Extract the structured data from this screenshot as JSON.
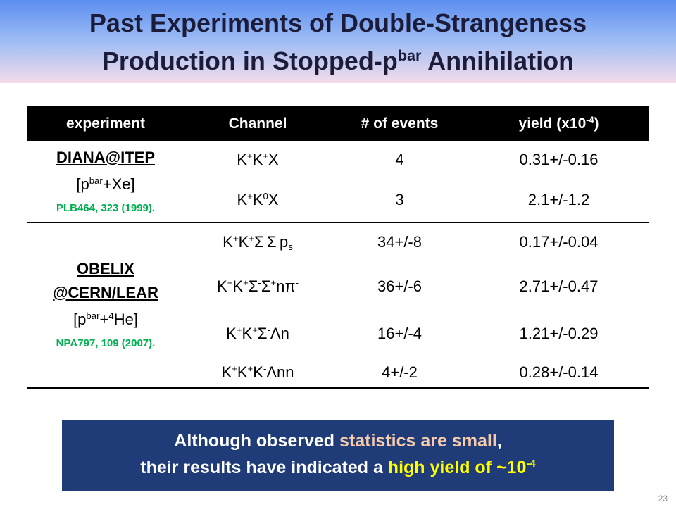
{
  "header": {
    "title_line1": [
      {
        "t": "Past Experiments of Double-Strangeness"
      }
    ],
    "title_line2": [
      {
        "t": "Production in Stopped-p"
      },
      {
        "t": "bar",
        "style": "sup"
      },
      {
        "t": " Annihilation"
      }
    ]
  },
  "table": {
    "columns": [
      [
        {
          "t": "experiment"
        }
      ],
      [
        {
          "t": "Channel"
        }
      ],
      [
        {
          "t": "# of events"
        }
      ],
      [
        {
          "t": "yield (x10"
        },
        {
          "t": "-4",
          "style": "sup"
        },
        {
          "t": ")"
        }
      ]
    ],
    "groups": [
      {
        "name": [
          [
            {
              "t": "DIANA@ITEP"
            }
          ]
        ],
        "target": [
          {
            "t": "[p"
          },
          {
            "t": "bar",
            "style": "sup"
          },
          {
            "t": "+Xe]"
          }
        ],
        "reference": [
          {
            "t": "PLB464, 323 (1999)."
          }
        ],
        "rows": [
          {
            "channel": [
              {
                "t": "K"
              },
              {
                "t": "+",
                "style": "sup"
              },
              {
                "t": "K"
              },
              {
                "t": "+",
                "style": "sup"
              },
              {
                "t": "X"
              }
            ],
            "events": "4",
            "yield": "0.31+/-0.16"
          },
          {
            "channel": [
              {
                "t": "K"
              },
              {
                "t": "+",
                "style": "sup"
              },
              {
                "t": "K"
              },
              {
                "t": "0",
                "style": "sup"
              },
              {
                "t": "X"
              }
            ],
            "events": "3",
            "yield": "2.1+/-1.2"
          }
        ]
      },
      {
        "name": [
          [
            {
              "t": "OBELIX"
            }
          ],
          [
            {
              "t": "@CERN/LEAR"
            }
          ]
        ],
        "target": [
          {
            "t": "[p"
          },
          {
            "t": "bar",
            "style": "sup"
          },
          {
            "t": "+"
          },
          {
            "t": "4",
            "style": "sup"
          },
          {
            "t": "He]"
          }
        ],
        "reference": [
          {
            "t": "NPA797, 109 (2007)."
          }
        ],
        "rows": [
          {
            "channel": [
              {
                "t": "K"
              },
              {
                "t": "+",
                "style": "sup"
              },
              {
                "t": "K"
              },
              {
                "t": "+",
                "style": "sup"
              },
              {
                "t": "Σ"
              },
              {
                "t": "-",
                "style": "sup"
              },
              {
                "t": "Σ"
              },
              {
                "t": "-",
                "style": "sup"
              },
              {
                "t": "p"
              },
              {
                "t": "s",
                "style": "sub"
              }
            ],
            "events": "34+/-8",
            "yield": "0.17+/-0.04"
          },
          {
            "channel": [
              {
                "t": "K"
              },
              {
                "t": "+",
                "style": "sup"
              },
              {
                "t": "K"
              },
              {
                "t": "+",
                "style": "sup"
              },
              {
                "t": "Σ"
              },
              {
                "t": "-",
                "style": "sup"
              },
              {
                "t": "Σ"
              },
              {
                "t": "+",
                "style": "sup"
              },
              {
                "t": "nπ"
              },
              {
                "t": "-",
                "style": "sup"
              }
            ],
            "events": "36+/-6",
            "yield": "2.71+/-0.47"
          },
          {
            "channel": [
              {
                "t": "K"
              },
              {
                "t": "+",
                "style": "sup"
              },
              {
                "t": "K"
              },
              {
                "t": "+",
                "style": "sup"
              },
              {
                "t": "Σ"
              },
              {
                "t": "-",
                "style": "sup"
              },
              {
                "t": "Λn"
              }
            ],
            "events": "16+/-4",
            "yield": "1.21+/-0.29"
          },
          {
            "channel": [
              {
                "t": "K"
              },
              {
                "t": "+",
                "style": "sup"
              },
              {
                "t": "K"
              },
              {
                "t": "+",
                "style": "sup"
              },
              {
                "t": "K"
              },
              {
                "t": "-",
                "style": "sup"
              },
              {
                "t": "Λnn"
              }
            ],
            "events": "4+/-2",
            "yield": "0.28+/-0.14"
          }
        ]
      }
    ]
  },
  "summary": {
    "line1": [
      {
        "t": "Although observed "
      },
      {
        "t": "statistics are small",
        "color": "#f8cbad"
      },
      {
        "t": ","
      }
    ],
    "line2": [
      {
        "t": "their results have indicated a "
      },
      {
        "t": "high yield of ~10",
        "color": "#ffff00"
      },
      {
        "t": "-4",
        "style": "sup",
        "color": "#ffff00"
      }
    ]
  },
  "page_number": "23"
}
